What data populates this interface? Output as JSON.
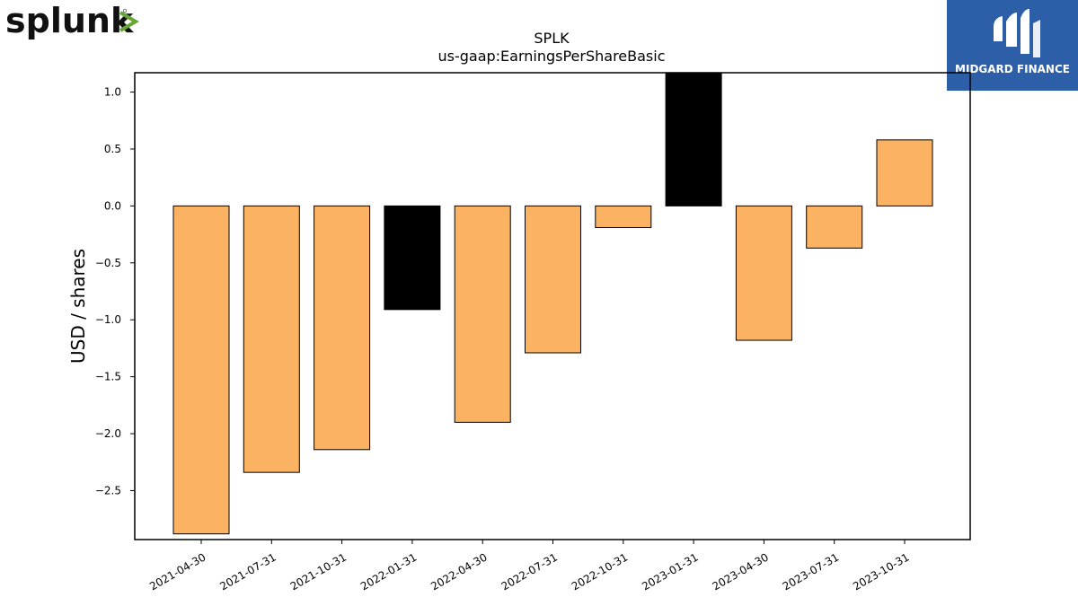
{
  "brand": {
    "left_logo_text": "splunk",
    "right_logo_text": "MIDGARD FINANCE",
    "right_logo_bg": "#2d5ea8"
  },
  "chart_data": {
    "type": "bar",
    "title": "SPLK",
    "subtitle": "us-gaap:EarningsPerShareBasic",
    "xlabel": "",
    "ylabel": "USD / shares",
    "categories": [
      "2021-04-30",
      "2021-07-31",
      "2021-10-31",
      "2022-01-31",
      "2022-04-30",
      "2022-07-31",
      "2022-10-31",
      "2023-01-31",
      "2023-04-30",
      "2023-07-31",
      "2023-10-31"
    ],
    "values": [
      -2.88,
      -2.34,
      -2.14,
      -0.91,
      -1.9,
      -1.29,
      -0.19,
      1.17,
      -1.18,
      -0.37,
      0.58
    ],
    "bar_colors": [
      "#fbb263",
      "#fbb263",
      "#fbb263",
      "#000000",
      "#fbb263",
      "#fbb263",
      "#fbb263",
      "#000000",
      "#fbb263",
      "#fbb263",
      "#fbb263"
    ],
    "yticks": [
      "1.0",
      "0.5",
      "0.0",
      "−0.5",
      "−1.0",
      "−1.5",
      "−2.0",
      "−2.5"
    ],
    "ytick_values": [
      1.0,
      0.5,
      0.0,
      -0.5,
      -1.0,
      -1.5,
      -2.0,
      -2.5
    ],
    "ylim": [
      -2.93,
      1.17
    ],
    "grid": false,
    "legend": "none"
  }
}
